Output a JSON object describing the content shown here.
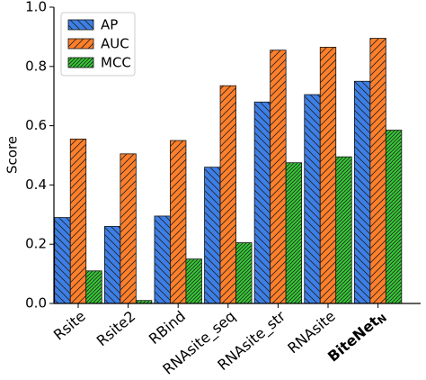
{
  "chart_data": {
    "type": "bar",
    "y_label": "Score",
    "categories": [
      "Rsite",
      "Rsite2",
      "RBind",
      "RNAsite_seq",
      "RNAsite_str",
      "RNAsite",
      "BiteNet"
    ],
    "last_category_subscript": "N",
    "series": [
      {
        "name": "AP",
        "color": "#3d7fe6",
        "hatch": "\\",
        "values": [
          0.29,
          0.26,
          0.295,
          0.46,
          0.68,
          0.705,
          0.75
        ]
      },
      {
        "name": "AUC",
        "color": "#ff7f2a",
        "hatch": "/",
        "values": [
          0.555,
          0.505,
          0.55,
          0.735,
          0.855,
          0.865,
          0.895
        ]
      },
      {
        "name": "MCC",
        "color": "#36cc36",
        "hatch": "//",
        "values": [
          0.11,
          0.01,
          0.15,
          0.205,
          0.475,
          0.495,
          0.585
        ]
      }
    ],
    "ylim": [
      0,
      1
    ],
    "yticks": [
      {
        "value": 0,
        "label": "0.0"
      },
      0.2,
      0.4,
      0.6,
      0.8,
      {
        "value": 1,
        "label": "1.0"
      }
    ],
    "legend": "upper left"
  }
}
